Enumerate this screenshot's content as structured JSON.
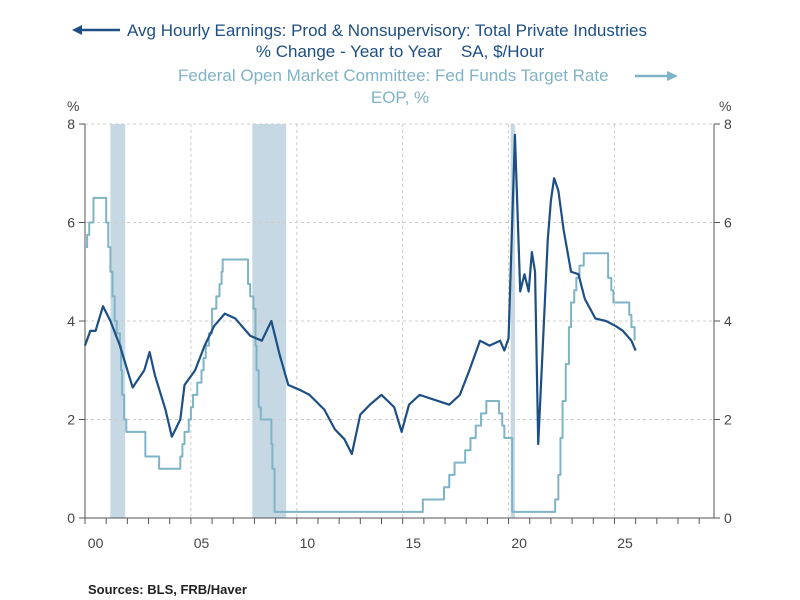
{
  "chart_data": {
    "type": "line",
    "legend": {
      "left_series_line1": "Avg Hourly Earnings: Prod & Nonsupervisory: Total Private Industries",
      "left_series_line2": "% Change - Year to Year    SA, $/Hour",
      "right_series_line1": "Federal Open Market Committee: Fed Funds Target Rate",
      "right_series_line2": "EOP, %"
    },
    "ylabel_left": "%",
    "ylabel_right": "%",
    "xlim": [
      2000,
      2029.7
    ],
    "ylim": [
      0,
      8
    ],
    "y_ticks": [
      "0",
      "2",
      "4",
      "6",
      "8"
    ],
    "x_ticks": [
      {
        "year": 2000,
        "label": "00"
      },
      {
        "year": 2005,
        "label": "05"
      },
      {
        "year": 2010,
        "label": "10"
      },
      {
        "year": 2015,
        "label": "15"
      },
      {
        "year": 2020,
        "label": "20"
      },
      {
        "year": 2025,
        "label": "25"
      }
    ],
    "grid": true,
    "recessions": [
      [
        2001.2,
        2001.9
      ],
      [
        2007.9,
        2009.5
      ],
      [
        2020.1,
        2020.3
      ]
    ],
    "colors": {
      "earnings": "#1d4f85",
      "fed_funds": "#7fb3c6",
      "recession": "#c5d8e3",
      "grid": "#cccccc"
    },
    "series": [
      {
        "name": "Avg Hourly Earnings: Prod & Nonsupervisory: Total Private Industries",
        "axis": "left",
        "points": [
          [
            2000.0,
            3.5
          ],
          [
            2000.25,
            3.8
          ],
          [
            2000.5,
            3.8
          ],
          [
            2000.85,
            4.3
          ],
          [
            2001.2,
            4.0
          ],
          [
            2001.65,
            3.5
          ],
          [
            2002.25,
            2.65
          ],
          [
            2002.8,
            3.0
          ],
          [
            2003.05,
            3.37
          ],
          [
            2003.3,
            2.9
          ],
          [
            2003.8,
            2.2
          ],
          [
            2004.1,
            1.65
          ],
          [
            2004.5,
            2.0
          ],
          [
            2004.7,
            2.7
          ],
          [
            2005.2,
            3.0
          ],
          [
            2005.65,
            3.5
          ],
          [
            2006.1,
            3.9
          ],
          [
            2006.6,
            4.15
          ],
          [
            2007.1,
            4.05
          ],
          [
            2007.8,
            3.7
          ],
          [
            2008.35,
            3.6
          ],
          [
            2008.8,
            4.0
          ],
          [
            2009.2,
            3.3
          ],
          [
            2009.6,
            2.7
          ],
          [
            2010.15,
            2.6
          ],
          [
            2010.6,
            2.5
          ],
          [
            2011.3,
            2.2
          ],
          [
            2011.8,
            1.8
          ],
          [
            2012.25,
            1.6
          ],
          [
            2012.6,
            1.3
          ],
          [
            2013.0,
            2.1
          ],
          [
            2013.45,
            2.3
          ],
          [
            2014.0,
            2.5
          ],
          [
            2014.6,
            2.25
          ],
          [
            2014.95,
            1.75
          ],
          [
            2015.3,
            2.3
          ],
          [
            2015.8,
            2.5
          ],
          [
            2016.5,
            2.4
          ],
          [
            2017.2,
            2.3
          ],
          [
            2017.7,
            2.5
          ],
          [
            2018.15,
            3.0
          ],
          [
            2018.65,
            3.6
          ],
          [
            2019.1,
            3.5
          ],
          [
            2019.6,
            3.6
          ],
          [
            2019.8,
            3.4
          ],
          [
            2020.0,
            3.65
          ],
          [
            2020.3,
            7.78
          ],
          [
            2020.55,
            4.6
          ],
          [
            2020.75,
            4.95
          ],
          [
            2020.95,
            4.6
          ],
          [
            2021.1,
            5.4
          ],
          [
            2021.25,
            5.0
          ],
          [
            2021.4,
            1.5
          ],
          [
            2021.65,
            3.8
          ],
          [
            2021.85,
            5.65
          ],
          [
            2022.0,
            6.45
          ],
          [
            2022.15,
            6.9
          ],
          [
            2022.35,
            6.65
          ],
          [
            2022.6,
            5.85
          ],
          [
            2022.95,
            5.0
          ],
          [
            2023.3,
            4.95
          ],
          [
            2023.6,
            4.45
          ],
          [
            2024.1,
            4.05
          ],
          [
            2024.6,
            4.0
          ],
          [
            2025.05,
            3.9
          ],
          [
            2025.4,
            3.8
          ],
          [
            2025.8,
            3.6
          ],
          [
            2026.0,
            3.4
          ]
        ]
      },
      {
        "name": "Federal Open Market Committee: Fed Funds Target Rate",
        "axis": "right",
        "step": true,
        "points": [
          [
            2000.0,
            5.5
          ],
          [
            2000.1,
            5.75
          ],
          [
            2000.2,
            6.0
          ],
          [
            2000.4,
            6.5
          ],
          [
            2001.0,
            6.0
          ],
          [
            2001.1,
            5.5
          ],
          [
            2001.2,
            5.0
          ],
          [
            2001.3,
            4.5
          ],
          [
            2001.4,
            4.0
          ],
          [
            2001.5,
            3.75
          ],
          [
            2001.65,
            3.5
          ],
          [
            2001.7,
            3.0
          ],
          [
            2001.75,
            2.5
          ],
          [
            2001.85,
            2.0
          ],
          [
            2001.95,
            1.75
          ],
          [
            2002.85,
            1.25
          ],
          [
            2003.5,
            1.0
          ],
          [
            2004.5,
            1.25
          ],
          [
            2004.6,
            1.5
          ],
          [
            2004.7,
            1.75
          ],
          [
            2004.9,
            2.0
          ],
          [
            2005.0,
            2.25
          ],
          [
            2005.1,
            2.5
          ],
          [
            2005.3,
            2.75
          ],
          [
            2005.5,
            3.0
          ],
          [
            2005.6,
            3.25
          ],
          [
            2005.7,
            3.5
          ],
          [
            2005.85,
            3.75
          ],
          [
            2006.0,
            4.25
          ],
          [
            2006.2,
            4.5
          ],
          [
            2006.35,
            4.75
          ],
          [
            2006.45,
            5.0
          ],
          [
            2006.5,
            5.25
          ],
          [
            2007.7,
            4.75
          ],
          [
            2007.8,
            4.5
          ],
          [
            2007.95,
            4.25
          ],
          [
            2008.05,
            3.5
          ],
          [
            2008.1,
            3.0
          ],
          [
            2008.2,
            2.25
          ],
          [
            2008.3,
            2.0
          ],
          [
            2008.8,
            1.5
          ],
          [
            2008.85,
            1.0
          ],
          [
            2008.95,
            0.125
          ],
          [
            2015.95,
            0.375
          ],
          [
            2016.95,
            0.625
          ],
          [
            2017.2,
            0.875
          ],
          [
            2017.45,
            1.125
          ],
          [
            2017.95,
            1.375
          ],
          [
            2018.2,
            1.625
          ],
          [
            2018.45,
            1.875
          ],
          [
            2018.7,
            2.125
          ],
          [
            2018.95,
            2.375
          ],
          [
            2019.55,
            2.125
          ],
          [
            2019.7,
            1.875
          ],
          [
            2019.8,
            1.625
          ],
          [
            2020.17,
            0.125
          ],
          [
            2022.2,
            0.375
          ],
          [
            2022.35,
            0.875
          ],
          [
            2022.45,
            1.625
          ],
          [
            2022.55,
            2.375
          ],
          [
            2022.7,
            3.125
          ],
          [
            2022.85,
            3.875
          ],
          [
            2022.95,
            4.375
          ],
          [
            2023.1,
            4.625
          ],
          [
            2023.2,
            4.875
          ],
          [
            2023.35,
            5.125
          ],
          [
            2023.55,
            5.375
          ],
          [
            2024.7,
            4.875
          ],
          [
            2024.85,
            4.625
          ],
          [
            2024.95,
            4.375
          ],
          [
            2025.7,
            4.125
          ],
          [
            2025.8,
            3.875
          ],
          [
            2025.95,
            3.625
          ],
          [
            2026.0,
            3.625
          ]
        ]
      }
    ]
  },
  "footer": {
    "sources": "Sources:  BLS, FRB/Haver"
  }
}
